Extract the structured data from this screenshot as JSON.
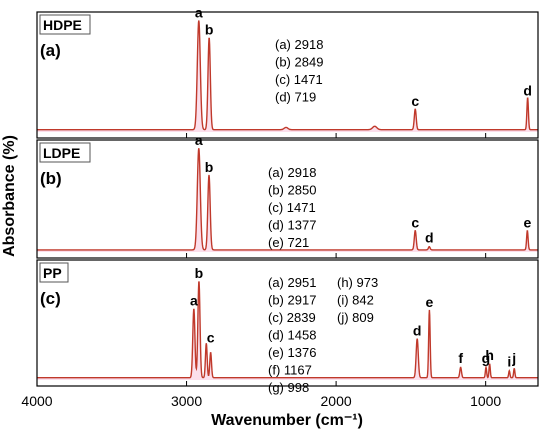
{
  "chart_data": {
    "type": "line",
    "ylabel": "Absorbance (%)",
    "xlabel": "Wavenumber (cm⁻¹)",
    "xlim": [
      4000,
      650
    ],
    "x_ticks": [
      {
        "value": 4000,
        "label": "4000"
      },
      {
        "value": 3000,
        "label": "3000"
      },
      {
        "value": 2000,
        "label": "2000"
      },
      {
        "value": 1000,
        "label": "1000"
      }
    ],
    "line_color": "#c0392b",
    "fill_color": "#f7c5dc",
    "panels": [
      {
        "tag": "HDPE",
        "letter": "(a)",
        "peaks_text": [
          "(a) 2918",
          "(b) 2849",
          "(c) 1471",
          "(d) 719"
        ],
        "peak_labels": [
          {
            "label": "a",
            "x": 2918,
            "y": 0.97
          },
          {
            "label": "b",
            "x": 2849,
            "y": 0.82
          },
          {
            "label": "c",
            "x": 1471,
            "y": 0.2
          },
          {
            "label": "d",
            "x": 719,
            "y": 0.29
          }
        ],
        "baseline": 0.02,
        "peaks": [
          {
            "x": 2918,
            "h": 0.95,
            "w": 14
          },
          {
            "x": 2849,
            "h": 0.8,
            "w": 11
          },
          {
            "x": 1471,
            "h": 0.18,
            "w": 9
          },
          {
            "x": 1742,
            "h": 0.03,
            "w": 20
          },
          {
            "x": 2335,
            "h": 0.02,
            "w": 18
          },
          {
            "x": 719,
            "h": 0.28,
            "w": 7
          }
        ]
      },
      {
        "tag": "LDPE",
        "letter": "(b)",
        "peaks_text": [
          "(a) 2918",
          "(b) 2850",
          "(c) 1471",
          "(d) 1377",
          "(e) 721"
        ],
        "peak_labels": [
          {
            "label": "a",
            "x": 2918,
            "y": 0.97
          },
          {
            "label": "b",
            "x": 2850,
            "y": 0.72
          },
          {
            "label": "c",
            "x": 1471,
            "y": 0.2
          },
          {
            "label": "d",
            "x": 1377,
            "y": 0.06
          },
          {
            "label": "e",
            "x": 721,
            "y": 0.2
          }
        ],
        "baseline": 0.02,
        "peaks": [
          {
            "x": 2918,
            "h": 0.95,
            "w": 14
          },
          {
            "x": 2850,
            "h": 0.7,
            "w": 11
          },
          {
            "x": 1471,
            "h": 0.18,
            "w": 9
          },
          {
            "x": 1377,
            "h": 0.03,
            "w": 8
          },
          {
            "x": 721,
            "h": 0.18,
            "w": 7
          }
        ]
      },
      {
        "tag": "PP",
        "letter": "(c)",
        "peaks_text": [
          "(a) 2951",
          "(b) 2917",
          "(c) 2839",
          "(d) 1458",
          "(e) 1376",
          "(f) 1167",
          "(g) 998",
          "(h) 973",
          "(i) 842",
          "(j) 809"
        ],
        "peak_labels": [
          {
            "label": "a",
            "x": 2951,
            "y": 0.62
          },
          {
            "label": "b",
            "x": 2917,
            "y": 0.86
          },
          {
            "label": "c",
            "x": 2839,
            "y": 0.3
          },
          {
            "label": "d",
            "x": 1458,
            "y": 0.36
          },
          {
            "label": "e",
            "x": 1376,
            "y": 0.61
          },
          {
            "label": "f",
            "x": 1167,
            "y": 0.12
          },
          {
            "label": "g",
            "x": 998,
            "y": 0.12
          },
          {
            "label": "h",
            "x": 973,
            "y": 0.15
          },
          {
            "label": "i",
            "x": 842,
            "y": 0.09
          },
          {
            "label": "j",
            "x": 809,
            "y": 0.12
          }
        ],
        "baseline": 0.02,
        "peaks": [
          {
            "x": 2951,
            "h": 0.6,
            "w": 10
          },
          {
            "x": 2917,
            "h": 0.84,
            "w": 10
          },
          {
            "x": 2868,
            "h": 0.3,
            "w": 8
          },
          {
            "x": 2839,
            "h": 0.22,
            "w": 8
          },
          {
            "x": 1458,
            "h": 0.34,
            "w": 10
          },
          {
            "x": 1376,
            "h": 0.59,
            "w": 7
          },
          {
            "x": 1167,
            "h": 0.09,
            "w": 8
          },
          {
            "x": 998,
            "h": 0.09,
            "w": 6
          },
          {
            "x": 973,
            "h": 0.12,
            "w": 6
          },
          {
            "x": 842,
            "h": 0.06,
            "w": 6
          },
          {
            "x": 809,
            "h": 0.08,
            "w": 6
          }
        ]
      }
    ]
  }
}
